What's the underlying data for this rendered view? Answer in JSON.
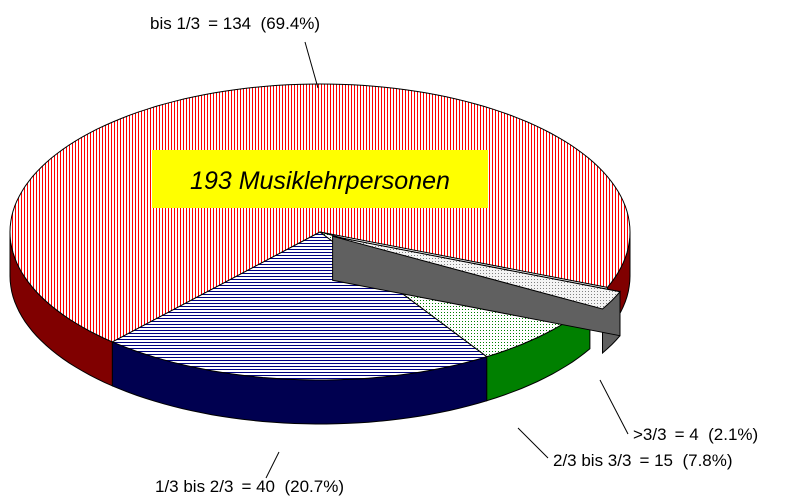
{
  "chart_data": {
    "type": "pie3d",
    "annotation": "193 Musiklehrpersonen",
    "categories": [
      "bis 1/3",
      "1/3 bis 2/3",
      "2/3 bis 3/3",
      ">3/3"
    ],
    "values": [
      134,
      40,
      15,
      4
    ],
    "value_labels": [
      "= 134  (69.4%)",
      "= 40  (20.7%)",
      "= 15  (7.8%)",
      "= 4  (2.1%)"
    ],
    "colors": [
      "#ff0000",
      "#000080",
      "#008000",
      "#808080"
    ],
    "side_colors": [
      "#800000",
      "#000050",
      "#008000",
      "#606060"
    ],
    "explode": [
      false,
      false,
      false,
      true
    ]
  }
}
